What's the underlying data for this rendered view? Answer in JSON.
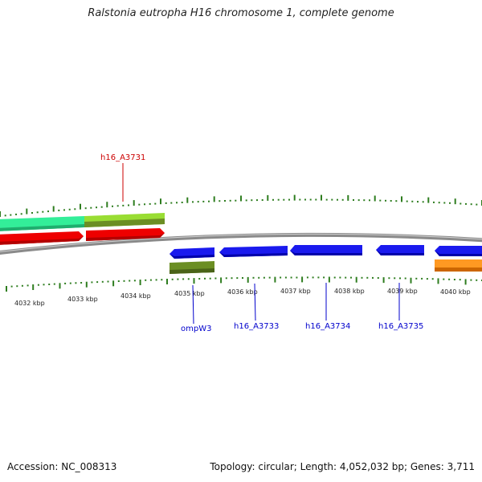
{
  "title": "Ralstonia eutropha H16 chromosome 1, complete genome",
  "footer": {
    "accession": "Accession: NC_008313",
    "summary": "Topology: circular; Length: 4,052,032 bp; Genes: 3,711"
  },
  "colors": {
    "backbone": "#8c8c8c",
    "tick": "#2e7d1f",
    "forward_label": "#cc0000",
    "reverse_label": "#0000cc"
  },
  "scale": {
    "unit": "kbp",
    "tick_labels": [
      "4032 kbp",
      "4033 kbp",
      "4034 kbp",
      "4035 kbp",
      "4036 kbp",
      "4037 kbp",
      "4038 kbp",
      "4039 kbp",
      "4040 kbp"
    ]
  },
  "features": [
    {
      "track": "forward-outer",
      "color": "#33ee99",
      "direction": "right"
    },
    {
      "track": "forward-outer",
      "color": "#99dd33",
      "direction": "right"
    },
    {
      "track": "forward-inner",
      "color": "#ee0000",
      "direction": "right"
    },
    {
      "track": "forward-inner",
      "color": "#ee0000",
      "direction": "right"
    },
    {
      "track": "reverse-inner",
      "color": "#1a1aee",
      "direction": "left"
    },
    {
      "track": "reverse-inner",
      "color": "#1a1aee",
      "direction": "left"
    },
    {
      "track": "reverse-inner",
      "color": "#1a1aee",
      "direction": "left"
    },
    {
      "track": "reverse-inner",
      "color": "#1a1aee",
      "direction": "left"
    },
    {
      "track": "reverse-inner",
      "color": "#1a1aee",
      "direction": "left"
    },
    {
      "track": "reverse-outer",
      "color": "#6b8e23",
      "direction": "none"
    },
    {
      "track": "reverse-outer",
      "color": "#ff9922",
      "direction": "none"
    }
  ],
  "gene_labels": [
    {
      "text": "h16_A3731",
      "strand": "forward"
    },
    {
      "text": "ompW3",
      "strand": "reverse"
    },
    {
      "text": "h16_A3733",
      "strand": "reverse"
    },
    {
      "text": "h16_A3734",
      "strand": "reverse"
    },
    {
      "text": "h16_A3735",
      "strand": "reverse"
    }
  ]
}
